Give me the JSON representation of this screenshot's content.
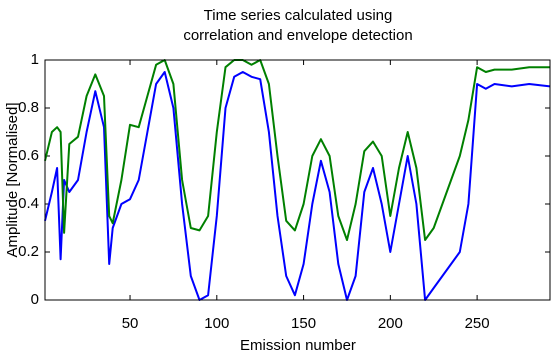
{
  "chart_data": {
    "type": "line",
    "title": [
      "Time series calculated using",
      "correlation and envelope detection"
    ],
    "x_label": "Emission number",
    "y_label": "Amplitude [Normalised]",
    "x": [
      1,
      5,
      8,
      10,
      12,
      15,
      20,
      25,
      30,
      35,
      38,
      40,
      45,
      50,
      55,
      60,
      65,
      70,
      75,
      80,
      85,
      90,
      95,
      100,
      105,
      110,
      115,
      120,
      125,
      130,
      135,
      140,
      145,
      150,
      155,
      160,
      165,
      170,
      175,
      180,
      185,
      190,
      195,
      200,
      205,
      210,
      215,
      220,
      225,
      230,
      235,
      240,
      245,
      250,
      255,
      260,
      270,
      280,
      292
    ],
    "series": [
      {
        "color": "#0000ff",
        "values": [
          0.33,
          0.45,
          0.55,
          0.17,
          0.5,
          0.45,
          0.5,
          0.7,
          0.87,
          0.72,
          0.15,
          0.3,
          0.4,
          0.42,
          0.5,
          0.7,
          0.9,
          0.95,
          0.8,
          0.4,
          0.1,
          0.0,
          0.02,
          0.35,
          0.8,
          0.93,
          0.95,
          0.93,
          0.92,
          0.7,
          0.35,
          0.1,
          0.02,
          0.15,
          0.4,
          0.58,
          0.45,
          0.15,
          0.0,
          0.1,
          0.45,
          0.55,
          0.4,
          0.2,
          0.4,
          0.6,
          0.4,
          0.0,
          0.05,
          0.1,
          0.15,
          0.2,
          0.4,
          0.9,
          0.88,
          0.9,
          0.89,
          0.9,
          0.89
        ]
      },
      {
        "color": "#008000",
        "values": [
          0.58,
          0.7,
          0.72,
          0.7,
          0.28,
          0.65,
          0.68,
          0.85,
          0.94,
          0.85,
          0.35,
          0.32,
          0.5,
          0.73,
          0.72,
          0.85,
          0.98,
          1.0,
          0.9,
          0.5,
          0.3,
          0.29,
          0.35,
          0.7,
          0.97,
          1.0,
          1.0,
          0.98,
          1.0,
          0.9,
          0.6,
          0.33,
          0.29,
          0.4,
          0.6,
          0.67,
          0.6,
          0.35,
          0.25,
          0.4,
          0.62,
          0.66,
          0.6,
          0.35,
          0.55,
          0.7,
          0.55,
          0.25,
          0.3,
          0.4,
          0.5,
          0.6,
          0.75,
          0.97,
          0.95,
          0.96,
          0.96,
          0.97,
          0.97
        ]
      }
    ],
    "xlim": [
      1,
      292
    ],
    "ylim": [
      0,
      1
    ],
    "xticks": [
      50,
      100,
      150,
      200,
      250
    ],
    "yticks": [
      0,
      0.2,
      0.4,
      0.6,
      0.8,
      1
    ]
  }
}
